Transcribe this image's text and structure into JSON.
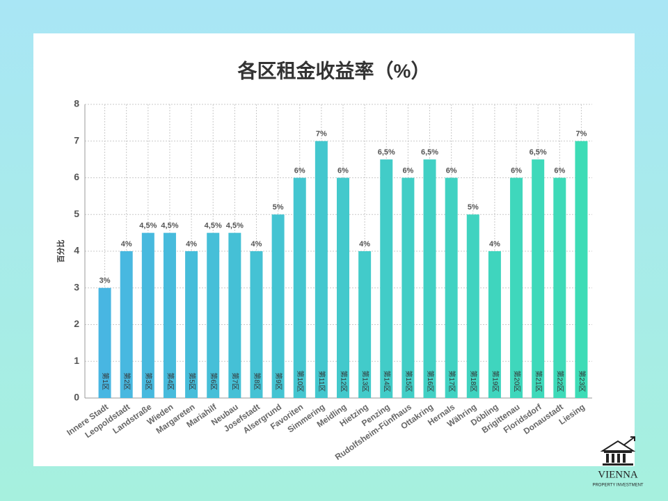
{
  "chart_data": {
    "type": "bar",
    "title": "各区租金收益率（%）",
    "y_label": "百分比",
    "categories": [
      "Innere Stadt",
      "Leopoldstadt",
      "Landstraße",
      "Wieden",
      "Margareten",
      "Mariahilf",
      "Neubau",
      "Josefstadt",
      "Alsergrund",
      "Favoriten",
      "Simmering",
      "Meidling",
      "Hietzing",
      "Penzing",
      "Rudolfsheim-Fünfhaus",
      "Ottakring",
      "Hernals",
      "Währing",
      "Döbling",
      "Brigittenau",
      "Floridsdorf",
      "Donaustadt",
      "Liesing"
    ],
    "district_labels": [
      "第1区",
      "第2区",
      "第3区",
      "第4区",
      "第5区",
      "第6区",
      "第7区",
      "第8区",
      "第9区",
      "第10区",
      "第11区",
      "第12区",
      "第13区",
      "第14区",
      "第15区",
      "第16区",
      "第17区",
      "第18区",
      "第19区",
      "第20区",
      "第21区",
      "第22区",
      "第23区"
    ],
    "values": [
      3,
      4,
      4.5,
      4.5,
      4,
      4.5,
      4.5,
      4,
      5,
      6,
      7,
      6,
      4,
      6.5,
      6,
      6.5,
      6,
      5,
      4,
      6,
      6.5,
      6,
      7
    ],
    "value_labels": [
      "3%",
      "4%",
      "4,5%",
      "4,5%",
      "4%",
      "4,5%",
      "4,5%",
      "4%",
      "5%",
      "6%",
      "7%",
      "6%",
      "4%",
      "6,5%",
      "6%",
      "6,5%",
      "6%",
      "5%",
      "4%",
      "6%",
      "6,5%",
      "6%",
      "7%"
    ],
    "color_start": "#48b6e2",
    "color_end": "#3ddcb6",
    "ylim": [
      0,
      8
    ],
    "yticks": [
      0,
      1,
      2,
      3,
      4,
      5,
      6,
      7,
      8
    ],
    "grid": true
  },
  "logo": {
    "name": "VIENNA",
    "tagline": "PROPERTY INVESTMENT"
  }
}
